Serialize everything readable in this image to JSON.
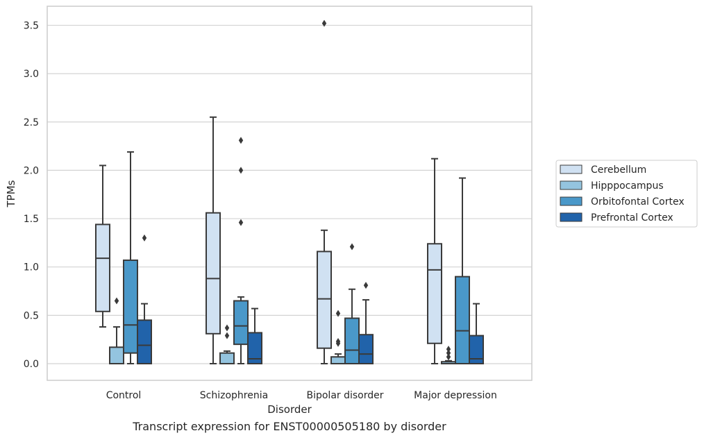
{
  "caption": "Transcript expression for ENST00000505180 by disorder",
  "chart_data": {
    "type": "box",
    "title": "",
    "xlabel": "Disorder",
    "ylabel": "TPMs",
    "ylim": [
      -0.17,
      3.7
    ],
    "yticks": [
      0.0,
      0.5,
      1.0,
      1.5,
      2.0,
      2.5,
      3.0,
      3.5
    ],
    "ytick_labels": [
      "0.0",
      "0.5",
      "1.0",
      "1.5",
      "2.0",
      "2.5",
      "3.0",
      "3.5"
    ],
    "grid": true,
    "legend_placement": "right",
    "categories": [
      "Control",
      "Schizophrenia",
      "Bipolar disorder",
      "Major depression"
    ],
    "series": [
      {
        "name": "Cerebellum",
        "color": "#d0e1f2",
        "boxes": [
          {
            "whislo": 0.38,
            "q1": 0.54,
            "med": 1.09,
            "q3": 1.44,
            "whishi": 2.05,
            "fliers": []
          },
          {
            "whislo": 0.0,
            "q1": 0.31,
            "med": 0.88,
            "q3": 1.56,
            "whishi": 2.55,
            "fliers": []
          },
          {
            "whislo": 0.0,
            "q1": 0.16,
            "med": 0.67,
            "q3": 1.16,
            "whishi": 1.38,
            "fliers": [
              3.52
            ]
          },
          {
            "whislo": 0.0,
            "q1": 0.21,
            "med": 0.97,
            "q3": 1.24,
            "whishi": 2.12,
            "fliers": []
          }
        ]
      },
      {
        "name": "Hipppocampus",
        "color": "#94c4df",
        "boxes": [
          {
            "whislo": 0.0,
            "q1": 0.0,
            "med": 0.0,
            "q3": 0.17,
            "whishi": 0.38,
            "fliers": [
              0.65
            ]
          },
          {
            "whislo": 0.0,
            "q1": 0.0,
            "med": 0.0,
            "q3": 0.11,
            "whishi": 0.13,
            "fliers": [
              0.29,
              0.37
            ]
          },
          {
            "whislo": 0.0,
            "q1": 0.0,
            "med": 0.0,
            "q3": 0.07,
            "whishi": 0.1,
            "fliers": [
              0.21,
              0.23,
              0.52
            ]
          },
          {
            "whislo": 0.0,
            "q1": 0.0,
            "med": 0.0,
            "q3": 0.02,
            "whishi": 0.03,
            "fliers": [
              0.07,
              0.11,
              0.15
            ]
          }
        ]
      },
      {
        "name": "Orbitofontal Cortex",
        "color": "#4a98c9",
        "boxes": [
          {
            "whislo": 0.0,
            "q1": 0.11,
            "med": 0.4,
            "q3": 1.07,
            "whishi": 2.19,
            "fliers": []
          },
          {
            "whislo": 0.0,
            "q1": 0.2,
            "med": 0.39,
            "q3": 0.65,
            "whishi": 0.69,
            "fliers": [
              1.46,
              2.0,
              2.31
            ]
          },
          {
            "whislo": 0.0,
            "q1": 0.0,
            "med": 0.14,
            "q3": 0.47,
            "whishi": 0.77,
            "fliers": [
              1.21
            ]
          },
          {
            "whislo": 0.0,
            "q1": 0.0,
            "med": 0.34,
            "q3": 0.9,
            "whishi": 1.92,
            "fliers": []
          }
        ]
      },
      {
        "name": "Prefrontal Cortex",
        "color": "#2163aa",
        "boxes": [
          {
            "whislo": 0.0,
            "q1": 0.0,
            "med": 0.19,
            "q3": 0.45,
            "whishi": 0.62,
            "fliers": [
              1.3
            ]
          },
          {
            "whislo": 0.0,
            "q1": 0.0,
            "med": 0.05,
            "q3": 0.32,
            "whishi": 0.57,
            "fliers": []
          },
          {
            "whislo": 0.0,
            "q1": 0.0,
            "med": 0.1,
            "q3": 0.3,
            "whishi": 0.66,
            "fliers": [
              0.81
            ]
          },
          {
            "whislo": 0.0,
            "q1": 0.0,
            "med": 0.05,
            "q3": 0.29,
            "whishi": 0.62,
            "fliers": []
          }
        ]
      }
    ]
  }
}
